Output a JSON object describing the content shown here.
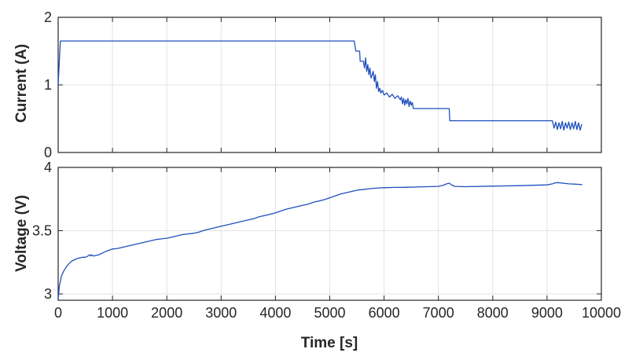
{
  "colors": {
    "series": "#1f4fbf",
    "axis": "#262626",
    "grid": "#e3e3e3"
  },
  "chart_data": [
    {
      "type": "line",
      "title": "",
      "xlabel": "",
      "ylabel": "Current (A)",
      "xlim": [
        0,
        10000
      ],
      "ylim": [
        0,
        2
      ],
      "yticks": [
        "0",
        "1",
        "2"
      ],
      "grid": true,
      "series": [
        {
          "x": [
            0,
            30,
            40,
            5450,
            5470,
            5480,
            5550,
            5560,
            5620,
            5640,
            5660,
            5680,
            5700,
            5720,
            5740,
            5760,
            5800,
            5820,
            5840,
            5860,
            5880,
            5900,
            5920,
            5940,
            5970,
            6000,
            6050,
            6100,
            6150,
            6200,
            6250,
            6300,
            6320,
            6340,
            6360,
            6380,
            6400,
            6420,
            6440,
            6460,
            6480,
            6500,
            6520,
            6540,
            7200,
            7210,
            7230,
            9100,
            9130,
            9160,
            9190,
            9220,
            9250,
            9280,
            9310,
            9340,
            9370,
            9400,
            9430,
            9460,
            9490,
            9520,
            9550,
            9580,
            9610,
            9640
          ],
          "values": [
            1.0,
            1.5,
            1.65,
            1.65,
            1.55,
            1.5,
            1.5,
            1.35,
            1.35,
            1.25,
            1.4,
            1.2,
            1.3,
            1.15,
            1.25,
            1.1,
            1.2,
            1.05,
            1.15,
            0.95,
            1.05,
            0.9,
            0.95,
            0.88,
            0.92,
            0.85,
            0.88,
            0.82,
            0.86,
            0.8,
            0.84,
            0.78,
            0.82,
            0.72,
            0.8,
            0.7,
            0.78,
            0.72,
            0.8,
            0.68,
            0.76,
            0.7,
            0.74,
            0.65,
            0.65,
            0.47,
            0.47,
            0.47,
            0.36,
            0.45,
            0.34,
            0.44,
            0.35,
            0.46,
            0.33,
            0.44,
            0.36,
            0.45,
            0.34,
            0.44,
            0.35,
            0.46,
            0.34,
            0.44,
            0.33,
            0.42
          ]
        }
      ]
    },
    {
      "type": "line",
      "title": "",
      "xlabel": "Time [s]",
      "ylabel": "Voltage (V)",
      "xlim": [
        0,
        10000
      ],
      "ylim": [
        2.95,
        4
      ],
      "xticks": [
        "0",
        "1000",
        "2000",
        "3000",
        "4000",
        "5000",
        "6000",
        "7000",
        "8000",
        "9000",
        "10000"
      ],
      "yticks": [
        "3",
        "3.5",
        "4"
      ],
      "grid": true,
      "series": [
        {
          "x": [
            0,
            10,
            20,
            40,
            60,
            80,
            100,
            130,
            160,
            200,
            250,
            300,
            350,
            400,
            450,
            500,
            550,
            580,
            600,
            620,
            650,
            700,
            750,
            800,
            900,
            1000,
            1100,
            1200,
            1300,
            1400,
            1500,
            1600,
            1700,
            1800,
            1900,
            2000,
            2100,
            2200,
            2300,
            2400,
            2500,
            2600,
            2700,
            2800,
            2900,
            3000,
            3100,
            3200,
            3300,
            3400,
            3500,
            3600,
            3700,
            3800,
            3900,
            4000,
            4100,
            4200,
            4300,
            4400,
            4500,
            4600,
            4700,
            4800,
            4900,
            5000,
            5100,
            5200,
            5300,
            5400,
            5500,
            5600,
            5700,
            5800,
            5900,
            6000,
            6200,
            6400,
            6600,
            6800,
            7000,
            7100,
            7150,
            7200,
            7250,
            7300,
            7500,
            8000,
            8500,
            9000,
            9100,
            9150,
            9200,
            9300,
            9400,
            9500,
            9600,
            9650
          ],
          "values": [
            2.96,
            3.0,
            3.06,
            3.1,
            3.14,
            3.16,
            3.18,
            3.2,
            3.22,
            3.24,
            3.26,
            3.27,
            3.28,
            3.285,
            3.29,
            3.29,
            3.3,
            3.31,
            3.3,
            3.31,
            3.3,
            3.305,
            3.31,
            3.32,
            3.34,
            3.355,
            3.36,
            3.37,
            3.38,
            3.39,
            3.4,
            3.41,
            3.42,
            3.43,
            3.435,
            3.44,
            3.45,
            3.46,
            3.47,
            3.475,
            3.48,
            3.49,
            3.505,
            3.515,
            3.525,
            3.535,
            3.545,
            3.555,
            3.565,
            3.575,
            3.585,
            3.595,
            3.61,
            3.62,
            3.63,
            3.64,
            3.655,
            3.67,
            3.68,
            3.69,
            3.7,
            3.71,
            3.725,
            3.735,
            3.745,
            3.76,
            3.775,
            3.79,
            3.8,
            3.81,
            3.82,
            3.825,
            3.83,
            3.835,
            3.838,
            3.84,
            3.842,
            3.843,
            3.845,
            3.848,
            3.85,
            3.86,
            3.87,
            3.875,
            3.86,
            3.85,
            3.848,
            3.852,
            3.856,
            3.862,
            3.87,
            3.878,
            3.88,
            3.875,
            3.87,
            3.868,
            3.866,
            3.864
          ]
        }
      ]
    }
  ]
}
